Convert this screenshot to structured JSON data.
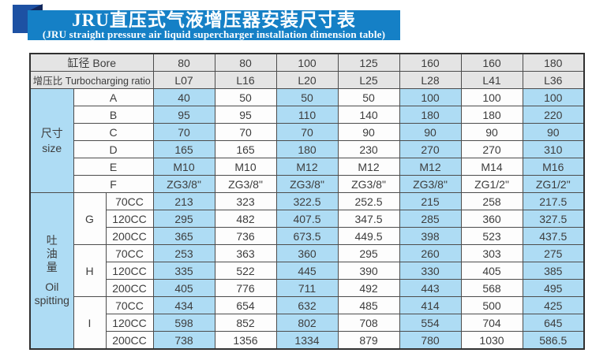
{
  "banner": {
    "title_cn": "JRU直压式气液增压器安装尺寸表",
    "title_en": "(JRU straight pressure air liquid supercharger installation dimension table)"
  },
  "colors": {
    "banner_blue": "#1580c6",
    "ribbon_square": "#1d51a3",
    "ribbon_fold": "#12275c",
    "header_gray": "#e4e4e4",
    "cell_blue": "#aedcf4",
    "cell_white": "#fdfdfd",
    "border_dark": "#4c4c4c",
    "text_dark": "#3d3d3d"
  },
  "table": {
    "columns_header": {
      "bore_label": "缸径 Bore",
      "ratio_label": "增压比 Turbocharging ratio",
      "bore": [
        "80",
        "80",
        "100",
        "125",
        "160",
        "160",
        "180"
      ],
      "ratio": [
        "L07",
        "L16",
        "L20",
        "L25",
        "L28",
        "L41",
        "L36"
      ]
    },
    "size_section": {
      "label_cn": "尺寸",
      "label_en": "size",
      "rows": [
        {
          "label": "A",
          "values": [
            "40",
            "50",
            "50",
            "50",
            "100",
            "100",
            "100"
          ]
        },
        {
          "label": "B",
          "values": [
            "95",
            "95",
            "110",
            "140",
            "180",
            "180",
            "220"
          ]
        },
        {
          "label": "C",
          "values": [
            "70",
            "70",
            "70",
            "90",
            "90",
            "90",
            "90"
          ]
        },
        {
          "label": "D",
          "values": [
            "165",
            "165",
            "180",
            "230",
            "270",
            "270",
            "310"
          ]
        },
        {
          "label": "E",
          "values": [
            "M10",
            "M10",
            "M12",
            "M12",
            "M12",
            "M14",
            "M16"
          ]
        },
        {
          "label": "F",
          "values": [
            "ZG3/8\"",
            "ZG3/8\"",
            "ZG3/8\"",
            "ZG3/8\"",
            "ZG3/8\"",
            "ZG1/2\"",
            "ZG1/2\""
          ]
        }
      ]
    },
    "oil_section": {
      "label_cn": "吐油量",
      "label_en_line1": "Oil",
      "label_en_line2": "spitting",
      "groups": [
        {
          "label": "G",
          "rows": [
            {
              "label": "70CC",
              "values": [
                "213",
                "323",
                "322.5",
                "252.5",
                "215",
                "258",
                "217.5"
              ]
            },
            {
              "label": "120CC",
              "values": [
                "295",
                "482",
                "407.5",
                "347.5",
                "285",
                "360",
                "327.5"
              ]
            },
            {
              "label": "200CC",
              "values": [
                "365",
                "736",
                "673.5",
                "449.5",
                "398",
                "523",
                "437.5"
              ]
            }
          ]
        },
        {
          "label": "H",
          "rows": [
            {
              "label": "70CC",
              "values": [
                "253",
                "363",
                "360",
                "295",
                "260",
                "303",
                "275"
              ]
            },
            {
              "label": "120CC",
              "values": [
                "335",
                "522",
                "445",
                "390",
                "330",
                "405",
                "385"
              ]
            },
            {
              "label": "200CC",
              "values": [
                "405",
                "776",
                "711",
                "492",
                "443",
                "568",
                "495"
              ]
            }
          ]
        },
        {
          "label": "I",
          "rows": [
            {
              "label": "70CC",
              "values": [
                "434",
                "654",
                "632",
                "485",
                "414",
                "500",
                "425"
              ]
            },
            {
              "label": "120CC",
              "values": [
                "598",
                "852",
                "802",
                "708",
                "554",
                "704",
                "645"
              ]
            },
            {
              "label": "200CC",
              "values": [
                "738",
                "1356",
                "1334",
                "879",
                "780",
                "1030",
                "586.5"
              ]
            }
          ]
        }
      ]
    }
  }
}
